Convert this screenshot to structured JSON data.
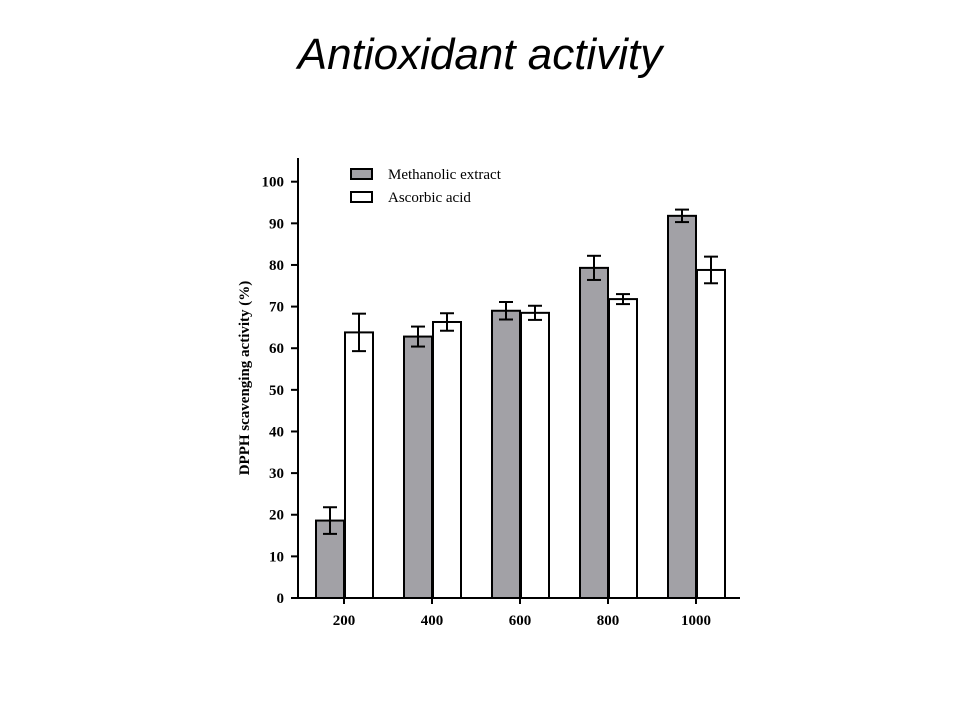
{
  "slide": {
    "title": "Antioxidant activity"
  },
  "chart_data": {
    "type": "bar",
    "title": "",
    "xlabel": "",
    "ylabel": "DPPH scavenging activity (%)",
    "ylim": [
      0,
      100
    ],
    "yticks": [
      0,
      10,
      20,
      30,
      40,
      50,
      60,
      70,
      80,
      90,
      100
    ],
    "categories": [
      "200",
      "400",
      "600",
      "800",
      "1000"
    ],
    "series": [
      {
        "name": "Methanolic extract",
        "color": "#a2a1a6",
        "values": [
          18.6,
          62.8,
          69.0,
          79.3,
          91.8
        ],
        "errors": [
          3.2,
          2.4,
          2.1,
          2.9,
          1.5
        ]
      },
      {
        "name": "Ascorbic acid",
        "color": "#ffffff",
        "values": [
          63.8,
          66.3,
          68.5,
          71.8,
          78.8
        ],
        "errors": [
          4.5,
          2.1,
          1.7,
          1.2,
          3.2
        ]
      }
    ],
    "legend": "top-left",
    "grid": false
  }
}
